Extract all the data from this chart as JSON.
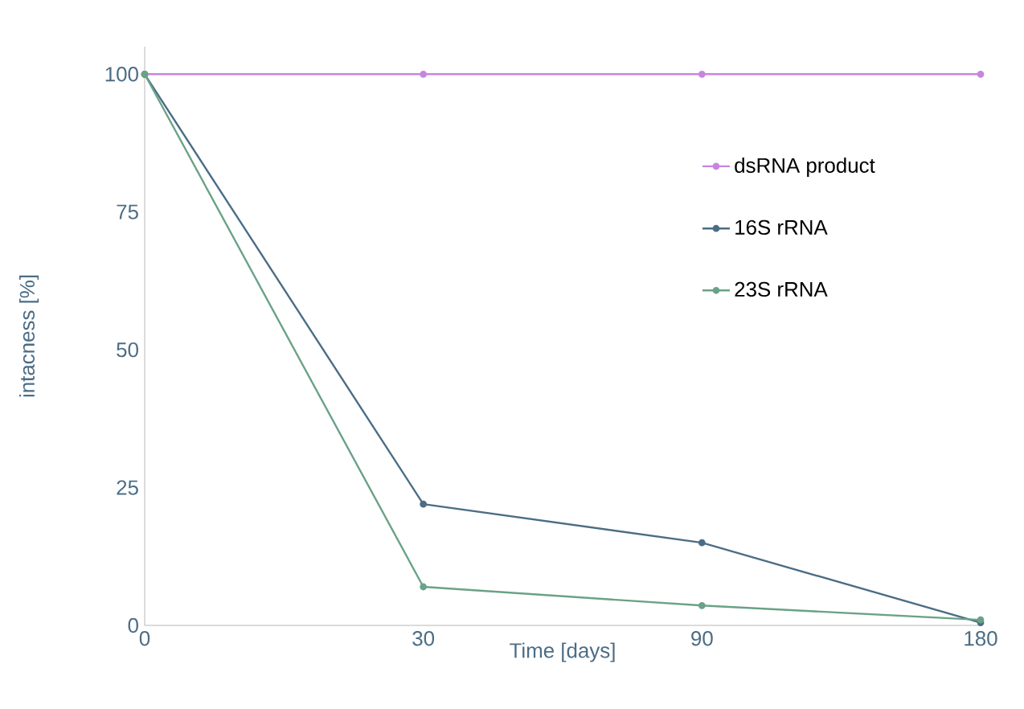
{
  "chart_data": {
    "type": "line",
    "xlabel": "Time [days]",
    "ylabel": "intacness [%]",
    "categories": [
      "0",
      "30",
      "90",
      "180"
    ],
    "ylim": [
      0,
      105
    ],
    "yticks": [
      0,
      25,
      50,
      75,
      100
    ],
    "legend": "right",
    "marker": "circle",
    "grid": false,
    "series": [
      {
        "name": "dsRNA product",
        "color": "#c785e0",
        "values": [
          100,
          100,
          100,
          100
        ]
      },
      {
        "name": "16S rRNA",
        "color": "#4b6d86",
        "values": [
          100,
          22,
          15,
          0.5
        ]
      },
      {
        "name": "23S rRNA",
        "color": "#6aa287",
        "values": [
          100,
          7,
          3.6,
          1
        ]
      }
    ]
  }
}
